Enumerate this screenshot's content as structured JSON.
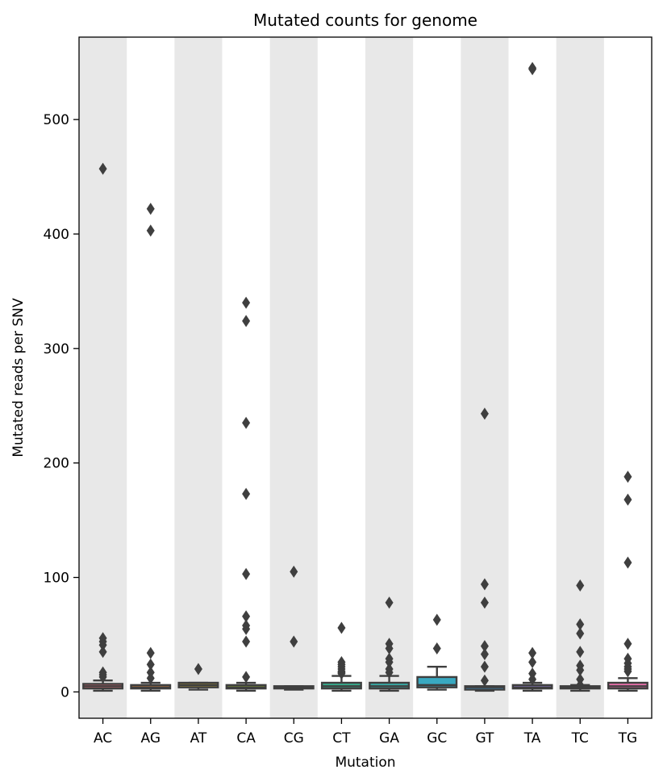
{
  "chart_data": {
    "type": "box",
    "title": "Mutated counts for genome",
    "xlabel": "Mutation",
    "ylabel": "Mutated reads per SNV",
    "ylim": [
      -23,
      572
    ],
    "yticks": [
      0,
      100,
      200,
      300,
      400,
      500
    ],
    "alternating_band_color": "#e8e8e8",
    "box_line_color": "#3f3f3f",
    "categories": [
      "AC",
      "AG",
      "AT",
      "CA",
      "CG",
      "CT",
      "GA",
      "GC",
      "GT",
      "TA",
      "TC",
      "TG"
    ],
    "boxes": [
      {
        "category": "AC",
        "q1": 3,
        "median": 5,
        "q3": 7,
        "whisker_low": 1,
        "whisker_high": 10,
        "color": "#e8707a",
        "outliers": [
          457,
          47,
          44,
          41,
          35,
          17,
          15,
          13
        ]
      },
      {
        "category": "AG",
        "q1": 3,
        "median": 4,
        "q3": 6,
        "whisker_low": 1,
        "whisker_high": 8,
        "color": "#d6843a",
        "outliers": [
          422,
          403,
          34,
          24,
          17,
          12
        ]
      },
      {
        "category": "AT",
        "q1": 4,
        "median": 6,
        "q3": 8,
        "whisker_low": 2,
        "whisker_high": 8,
        "color": "#b39b32",
        "outliers": [
          20
        ]
      },
      {
        "category": "CA",
        "q1": 3,
        "median": 4,
        "q3": 6,
        "whisker_low": 1,
        "whisker_high": 8,
        "color": "#8aa832",
        "outliers": [
          340,
          324,
          235,
          173,
          103,
          66,
          58,
          55,
          44,
          13
        ]
      },
      {
        "category": "CG",
        "q1": 3,
        "median": 4,
        "q3": 5,
        "whisker_low": 2,
        "whisker_high": 5,
        "color": "#35ae5e",
        "outliers": [
          105,
          44
        ]
      },
      {
        "category": "CT",
        "q1": 3,
        "median": 5,
        "q3": 8,
        "whisker_low": 1,
        "whisker_high": 14,
        "color": "#36ad8d",
        "outliers": [
          56,
          26,
          24,
          22,
          20,
          18,
          17,
          16
        ]
      },
      {
        "category": "GA",
        "q1": 3,
        "median": 5,
        "q3": 8,
        "whisker_low": 1,
        "whisker_high": 14,
        "color": "#37aba6",
        "outliers": [
          78,
          42,
          38,
          29,
          26,
          20,
          17
        ]
      },
      {
        "category": "GC",
        "q1": 4,
        "median": 6,
        "q3": 13,
        "whisker_low": 2,
        "whisker_high": 22,
        "color": "#39a9c1",
        "outliers": [
          63,
          38
        ]
      },
      {
        "category": "GT",
        "q1": 2,
        "median": 4,
        "q3": 5,
        "whisker_low": 1,
        "whisker_high": 5,
        "color": "#3e9fe0",
        "outliers": [
          243,
          94,
          78,
          40,
          33,
          22,
          10
        ]
      },
      {
        "category": "TA",
        "q1": 3,
        "median": 4,
        "q3": 6,
        "whisker_low": 1,
        "whisker_high": 8,
        "color": "#9f8be6",
        "outliers": [
          545,
          544,
          34,
          26,
          16,
          11
        ]
      },
      {
        "category": "TC",
        "q1": 3,
        "median": 4,
        "q3": 5,
        "whisker_low": 1,
        "whisker_high": 6,
        "color": "#de71db",
        "outliers": [
          93,
          59,
          51,
          35,
          23,
          19,
          11,
          6
        ]
      },
      {
        "category": "TG",
        "q1": 3,
        "median": 5,
        "q3": 8,
        "whisker_low": 1,
        "whisker_high": 12,
        "color": "#e66ea9",
        "outliers": [
          188,
          168,
          113,
          42,
          29,
          25,
          22,
          20,
          18
        ]
      }
    ]
  }
}
